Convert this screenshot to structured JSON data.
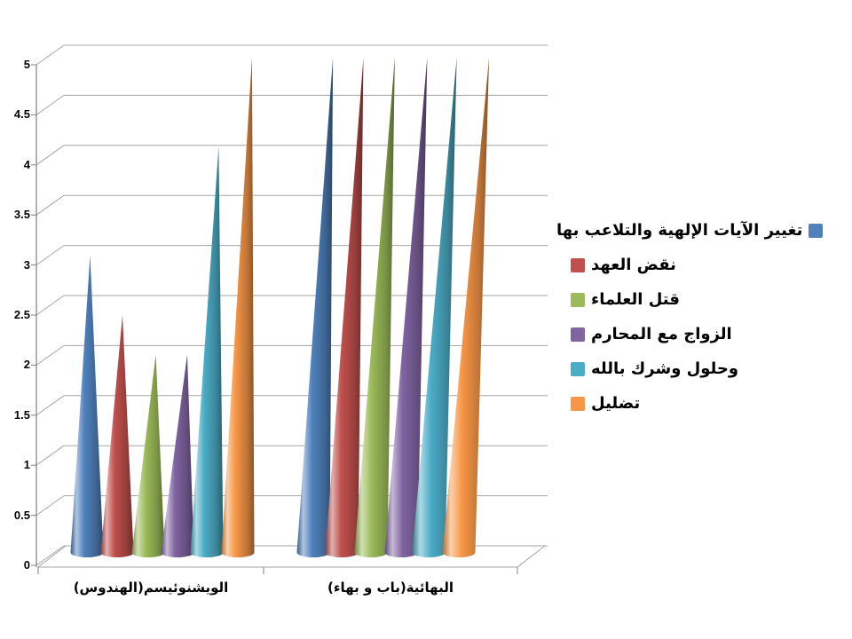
{
  "chart_data": {
    "type": "bar",
    "subtype": "3d-cone",
    "title": "",
    "xlabel": "",
    "ylabel": "",
    "categories": [
      "الويشنوئيسم(الهندوس)",
      "البهائية(باب و بهاء)"
    ],
    "series": [
      {
        "name": "تغيير الآيات الإلهية والتلاعب بها",
        "color": "#4F81BD",
        "values": [
          3,
          5
        ]
      },
      {
        "name": "نقض العهد",
        "color": "#C0504D",
        "values": [
          2.4,
          5
        ]
      },
      {
        "name": "قتل العلماء",
        "color": "#9BBB59",
        "values": [
          2,
          5
        ]
      },
      {
        "name": "الزواج مع المحارم",
        "color": "#8064A2",
        "values": [
          2,
          5
        ]
      },
      {
        "name": "وحلول وشرك بالله",
        "color": "#4BACC6",
        "values": [
          4.1,
          5
        ]
      },
      {
        "name": "تضليل",
        "color": "#F79646",
        "values": [
          5,
          5
        ]
      }
    ],
    "y_ticks": [
      "0",
      "0.5",
      "1",
      "1.5",
      "2",
      "2.5",
      "3",
      "3.5",
      "4",
      "4.5",
      "5"
    ],
    "ylim": [
      0,
      5
    ],
    "grid": true,
    "legend_position": "right",
    "gridline_color": "#A6A6A6",
    "axis_color": "#808080",
    "background_color": "#FFFFFF"
  }
}
